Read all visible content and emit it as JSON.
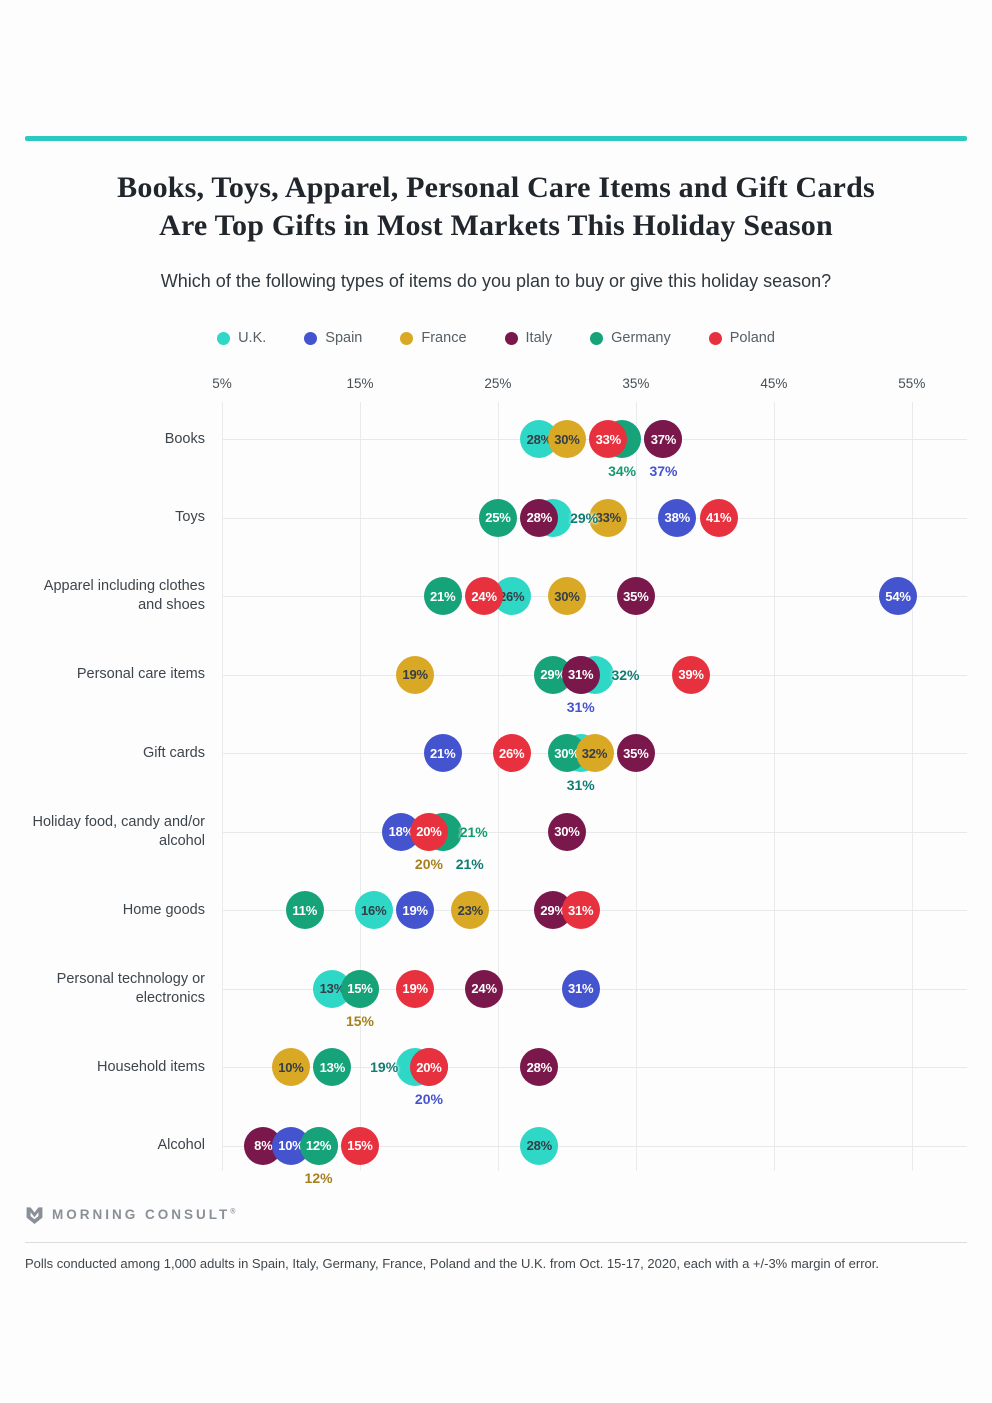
{
  "page": {
    "accent_color": "#2cc9c3",
    "title_line1": "Books, Toys, Apparel, Personal Care Items and Gift Cards",
    "title_line2": "Are Top Gifts in Most Markets This Holiday Season",
    "subtitle": "Which of the following types of items do you plan to buy or give this holiday season?",
    "logo_text": "MORNING CONSULT",
    "logo_reg_mark": "®",
    "footnote": "Polls conducted among 1,000 adults in Spain, Italy, Germany, France, Poland and the U.K. from Oct. 15-17, 2020, each with a +/-3% margin of error."
  },
  "chart_data": {
    "type": "scatter",
    "x_axis": {
      "min": 5,
      "max": 59,
      "ticks": [
        5,
        15,
        25,
        35,
        45,
        55
      ],
      "tick_suffix": "%",
      "grid": true
    },
    "legend_position": "top",
    "legend_order": [
      "uk",
      "spain",
      "france",
      "italy",
      "germany",
      "poland"
    ],
    "countries": {
      "uk": {
        "label": "U.K.",
        "fill": "#2ed7c6",
        "text_on": "#333e45",
        "text_out": "#107c72"
      },
      "spain": {
        "label": "Spain",
        "fill": "#4453ce",
        "text_on": "#ffffff",
        "text_out": "#4453ce"
      },
      "france": {
        "label": "France",
        "fill": "#d9a825",
        "text_on": "#333e45",
        "text_out": "#a5801d"
      },
      "italy": {
        "label": "Italy",
        "fill": "#7a184c",
        "text_on": "#ffffff",
        "text_out": "#7a184c"
      },
      "germany": {
        "label": "Germany",
        "fill": "#16a379",
        "text_on": "#ffffff",
        "text_out": "#149a70"
      },
      "poland": {
        "label": "Poland",
        "fill": "#e8313e",
        "text_on": "#ffffff",
        "text_out": "#e8313e"
      }
    },
    "rows": [
      {
        "label": "Books",
        "points": [
          {
            "c": "spain",
            "v": 37,
            "lp": "below"
          },
          {
            "c": "germany",
            "v": 34,
            "lp": "below"
          },
          {
            "c": "uk",
            "v": 28,
            "lp": "in"
          },
          {
            "c": "france",
            "v": 30,
            "lp": "in"
          },
          {
            "c": "poland",
            "v": 33,
            "lp": "in"
          },
          {
            "c": "italy",
            "v": 37,
            "lp": "in"
          }
        ]
      },
      {
        "label": "Toys",
        "points": [
          {
            "c": "uk",
            "v": 29,
            "lp": "right"
          },
          {
            "c": "germany",
            "v": 25,
            "lp": "in"
          },
          {
            "c": "italy",
            "v": 28,
            "lp": "in"
          },
          {
            "c": "france",
            "v": 33,
            "lp": "in"
          },
          {
            "c": "spain",
            "v": 38,
            "lp": "in"
          },
          {
            "c": "poland",
            "v": 41,
            "lp": "in"
          }
        ]
      },
      {
        "label": "Apparel including clothes and shoes",
        "points": [
          {
            "c": "germany",
            "v": 21,
            "lp": "in"
          },
          {
            "c": "uk",
            "v": 26,
            "lp": "in"
          },
          {
            "c": "poland",
            "v": 24,
            "lp": "in"
          },
          {
            "c": "france",
            "v": 30,
            "lp": "in"
          },
          {
            "c": "italy",
            "v": 35,
            "lp": "in"
          },
          {
            "c": "spain",
            "v": 54,
            "lp": "in"
          }
        ]
      },
      {
        "label": "Personal care items",
        "points": [
          {
            "c": "spain",
            "v": 31,
            "lp": "below"
          },
          {
            "c": "uk",
            "v": 32,
            "lp": "right"
          },
          {
            "c": "germany",
            "v": 29,
            "lp": "in"
          },
          {
            "c": "italy",
            "v": 31,
            "lp": "in"
          },
          {
            "c": "france",
            "v": 19,
            "lp": "in"
          },
          {
            "c": "poland",
            "v": 39,
            "lp": "in"
          }
        ]
      },
      {
        "label": "Gift cards",
        "points": [
          {
            "c": "uk",
            "v": 31,
            "lp": "below"
          },
          {
            "c": "germany",
            "v": 30,
            "lp": "in"
          },
          {
            "c": "france",
            "v": 32,
            "lp": "in"
          },
          {
            "c": "italy",
            "v": 35,
            "lp": "in"
          },
          {
            "c": "spain",
            "v": 21,
            "lp": "in"
          },
          {
            "c": "poland",
            "v": 26,
            "lp": "in"
          }
        ]
      },
      {
        "label": "Holiday food, candy and/or alcohol",
        "points": [
          {
            "c": "france",
            "v": 20,
            "lp": "below"
          },
          {
            "c": "uk",
            "v": 21,
            "lp": "below-right"
          },
          {
            "c": "spain",
            "v": 18,
            "lp": "in"
          },
          {
            "c": "germany",
            "v": 21,
            "lp": "right"
          },
          {
            "c": "poland",
            "v": 20,
            "lp": "in"
          },
          {
            "c": "italy",
            "v": 30,
            "lp": "in"
          }
        ]
      },
      {
        "label": "Home goods",
        "points": [
          {
            "c": "uk",
            "v": 16,
            "lp": "in"
          },
          {
            "c": "spain",
            "v": 19,
            "lp": "in"
          },
          {
            "c": "germany",
            "v": 11,
            "lp": "in"
          },
          {
            "c": "france",
            "v": 23,
            "lp": "in"
          },
          {
            "c": "italy",
            "v": 29,
            "lp": "in"
          },
          {
            "c": "poland",
            "v": 31,
            "lp": "in"
          }
        ]
      },
      {
        "label": "Personal technology or electronics",
        "points": [
          {
            "c": "france",
            "v": 15,
            "lp": "below"
          },
          {
            "c": "uk",
            "v": 13,
            "lp": "in"
          },
          {
            "c": "germany",
            "v": 15,
            "lp": "in"
          },
          {
            "c": "poland",
            "v": 19,
            "lp": "in"
          },
          {
            "c": "italy",
            "v": 24,
            "lp": "in"
          },
          {
            "c": "spain",
            "v": 31,
            "lp": "in"
          }
        ]
      },
      {
        "label": "Household items",
        "points": [
          {
            "c": "spain",
            "v": 20,
            "lp": "below"
          },
          {
            "c": "uk",
            "v": 19,
            "lp": "left"
          },
          {
            "c": "france",
            "v": 10,
            "lp": "in"
          },
          {
            "c": "germany",
            "v": 13,
            "lp": "in"
          },
          {
            "c": "poland",
            "v": 20,
            "lp": "in"
          },
          {
            "c": "italy",
            "v": 28,
            "lp": "in"
          }
        ]
      },
      {
        "label": "Alcohol",
        "points": [
          {
            "c": "france",
            "v": 12,
            "lp": "below"
          },
          {
            "c": "italy",
            "v": 8,
            "lp": "in"
          },
          {
            "c": "spain",
            "v": 10,
            "lp": "in"
          },
          {
            "c": "germany",
            "v": 12,
            "lp": "in"
          },
          {
            "c": "poland",
            "v": 15,
            "lp": "in"
          },
          {
            "c": "uk",
            "v": 28,
            "lp": "in"
          }
        ]
      }
    ]
  }
}
